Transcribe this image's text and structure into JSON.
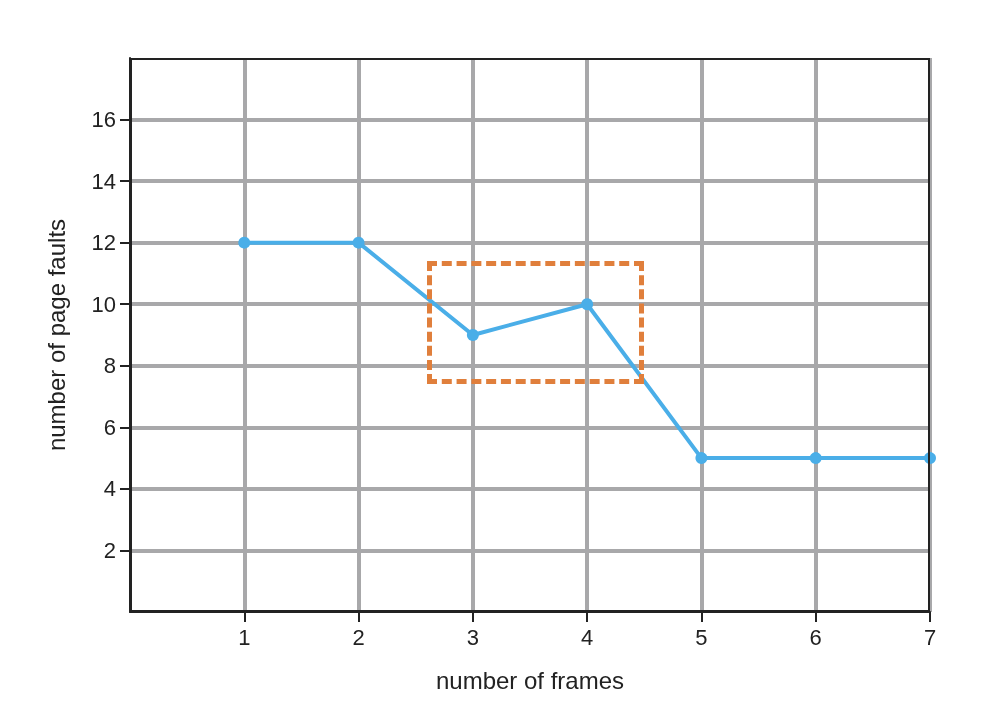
{
  "chart_data": {
    "type": "line",
    "xlabel": "number of frames",
    "ylabel": "number of page faults",
    "x": [
      1,
      2,
      3,
      4,
      5,
      6,
      7
    ],
    "series": [
      {
        "color": "#4aaee8",
        "values": [
          12,
          12,
          9,
          10,
          5,
          5,
          5
        ]
      }
    ],
    "xlim": [
      0,
      7
    ],
    "xticks": [
      1,
      2,
      3,
      4,
      5,
      6,
      7
    ],
    "ylim": [
      0,
      18
    ],
    "yticks": [
      2,
      4,
      6,
      8,
      10,
      12,
      14,
      16
    ],
    "grid": true,
    "marker": "circle",
    "line_style": "solid"
  }
}
